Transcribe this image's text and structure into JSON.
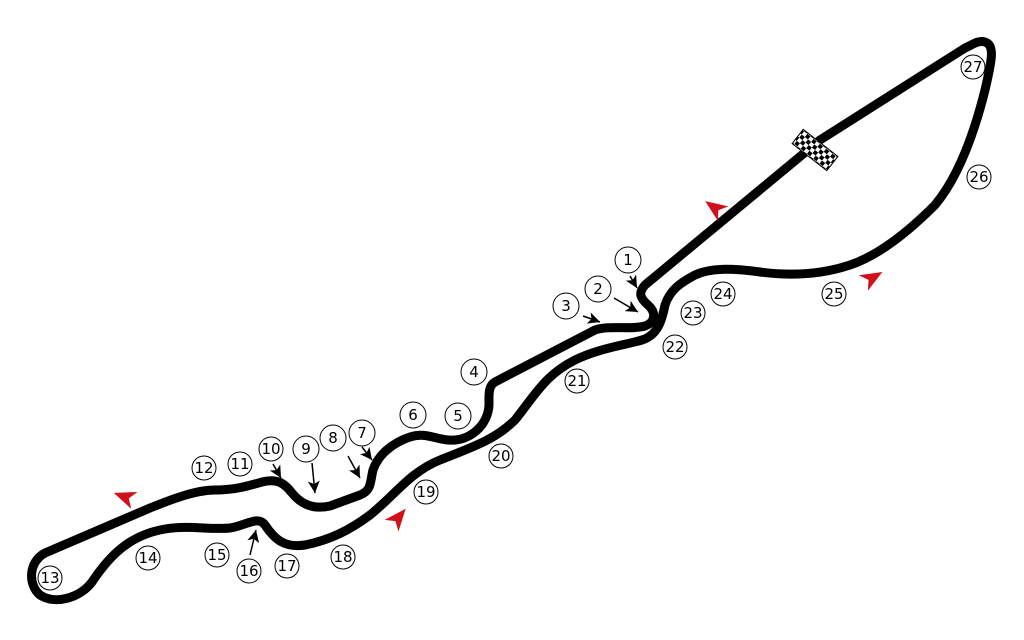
{
  "turns": [
    "1",
    "2",
    "3",
    "4",
    "5",
    "6",
    "7",
    "8",
    "9",
    "10",
    "11",
    "12",
    "13",
    "14",
    "15",
    "16",
    "17",
    "18",
    "19",
    "20",
    "21",
    "22",
    "23",
    "24",
    "25",
    "26",
    "27"
  ],
  "colors": {
    "track": "#000000",
    "direction_arrow": "#d0101a",
    "background": "#ffffff"
  },
  "icons": {
    "start_finish": "checkered-flag-icon",
    "direction": "direction-arrow-icon",
    "braking_point": "braking-arrow-icon"
  }
}
